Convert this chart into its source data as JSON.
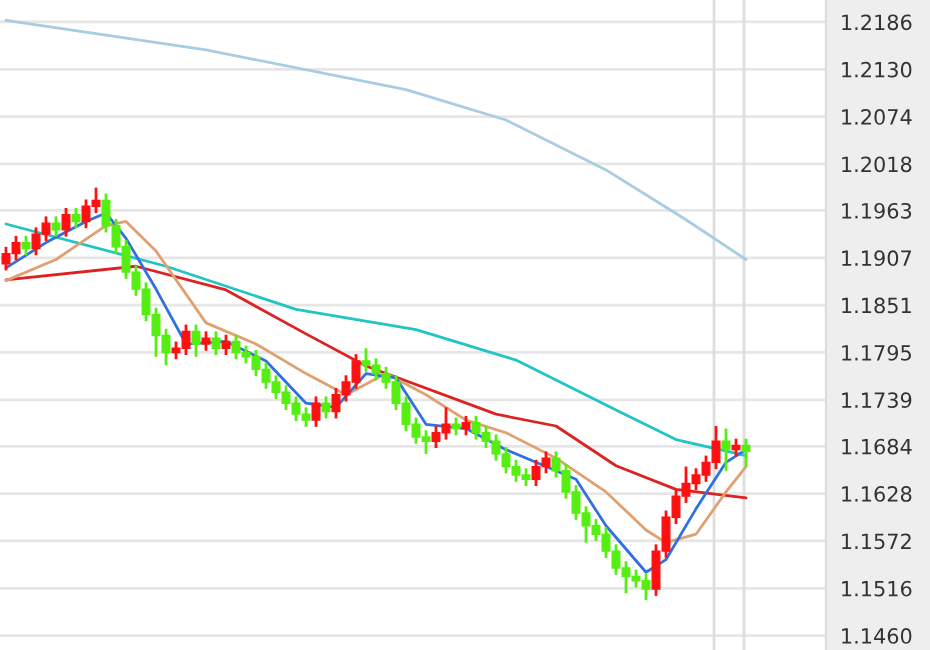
{
  "chart_data": {
    "type": "candlestick",
    "categories": [
      null,
      null,
      null,
      null,
      null,
      null,
      null,
      null,
      null,
      null,
      null,
      null,
      null,
      null,
      null,
      null,
      null,
      null,
      null,
      null,
      null,
      null,
      null,
      null,
      null,
      null,
      null,
      null,
      null,
      null,
      null,
      null,
      null,
      null,
      null,
      null,
      null,
      null,
      null,
      null,
      null,
      null,
      null,
      null,
      null,
      null,
      null,
      null,
      null,
      null,
      null,
      null,
      null,
      null,
      null,
      null,
      null,
      null,
      null,
      null,
      null,
      null,
      null,
      null,
      null,
      null,
      null,
      null,
      null,
      null,
      null,
      null,
      null,
      null,
      null
    ],
    "series": [
      {
        "type": "candlestick",
        "colors": [
          "#ff1010",
          "#ff1010",
          "#55ee11",
          "#ff1010",
          "#ff1010",
          "#55ee11",
          "#ff1010",
          "#55ee11",
          "#ff1010",
          "#ff1010",
          "#55ee11",
          "#55ee11",
          "#55ee11",
          "#55ee11",
          "#55ee11",
          "#55ee11",
          "#55ee11",
          "#ff1010",
          "#ff1010",
          "#55ee11",
          "#ff1010",
          "#55ee11",
          "#ff1010",
          "#55ee11",
          "#55ee11",
          "#55ee11",
          "#55ee11",
          "#55ee11",
          "#55ee11",
          "#55ee11",
          "#55ee11",
          "#ff1010",
          "#55ee11",
          "#ff1010",
          "#ff1010",
          "#ff1010",
          "#55ee11",
          "#55ee11",
          "#55ee11",
          "#55ee11",
          "#55ee11",
          "#55ee11",
          "#55ee11",
          "#ff1010",
          "#ff1010",
          "#55ee11",
          "#ff1010",
          "#55ee11",
          "#55ee11",
          "#55ee11",
          "#55ee11",
          "#55ee11",
          "#55ee11",
          "#ff1010",
          "#ff1010",
          "#55ee11",
          "#55ee11",
          "#55ee11",
          "#55ee11",
          "#55ee11",
          "#55ee11",
          "#55ee11",
          "#55ee11",
          "#55ee11",
          "#55ee11",
          "#ff1010",
          "#ff1010",
          "#ff1010",
          "#ff1010",
          "#ff1010",
          "#ff1010",
          "#ff1010",
          "#55ee11",
          "#ff1010",
          "#55ee11"
        ],
        "ohlc": [
          [
            1.19,
            1.192,
            1.1892,
            1.1912
          ],
          [
            1.1912,
            1.1933,
            1.1904,
            1.1925
          ],
          [
            1.1925,
            1.1933,
            1.191,
            1.1918
          ],
          [
            1.1918,
            1.1943,
            1.191,
            1.1935
          ],
          [
            1.1935,
            1.1956,
            1.1927,
            1.1948
          ],
          [
            1.1948,
            1.1956,
            1.1932,
            1.194
          ],
          [
            1.194,
            1.1966,
            1.1932,
            1.1958
          ],
          [
            1.1958,
            1.1966,
            1.1942,
            1.195
          ],
          [
            1.195,
            1.1976,
            1.1942,
            1.1968
          ],
          [
            1.1968,
            1.199,
            1.196,
            1.1975
          ],
          [
            1.1975,
            1.1983,
            1.1937,
            1.1945
          ],
          [
            1.1945,
            1.1953,
            1.1912,
            1.192
          ],
          [
            1.192,
            1.1928,
            1.1882,
            1.189
          ],
          [
            1.189,
            1.1898,
            1.1862,
            1.187
          ],
          [
            1.187,
            1.1878,
            1.1832,
            1.184
          ],
          [
            1.184,
            1.1848,
            1.179,
            1.1815
          ],
          [
            1.1815,
            1.1823,
            1.178,
            1.1795
          ],
          [
            1.1795,
            1.1808,
            1.1787,
            1.18
          ],
          [
            1.18,
            1.1828,
            1.1792,
            1.182
          ],
          [
            1.182,
            1.1828,
            1.179,
            1.1805
          ],
          [
            1.1805,
            1.182,
            1.1797,
            1.1812
          ],
          [
            1.1812,
            1.182,
            1.1792,
            1.18
          ],
          [
            1.18,
            1.1816,
            1.1792,
            1.1808
          ],
          [
            1.1808,
            1.1816,
            1.1787,
            1.1795
          ],
          [
            1.1795,
            1.1803,
            1.1782,
            1.179
          ],
          [
            1.179,
            1.1798,
            1.1767,
            1.1775
          ],
          [
            1.1775,
            1.1783,
            1.1752,
            1.176
          ],
          [
            1.176,
            1.1768,
            1.174,
            1.1748
          ],
          [
            1.1748,
            1.1756,
            1.1727,
            1.1735
          ],
          [
            1.1735,
            1.1743,
            1.1714,
            1.1722
          ],
          [
            1.1722,
            1.173,
            1.1707,
            1.1715
          ],
          [
            1.1715,
            1.1743,
            1.1707,
            1.1735
          ],
          [
            1.1735,
            1.1743,
            1.1717,
            1.1725
          ],
          [
            1.1725,
            1.1753,
            1.1717,
            1.1745
          ],
          [
            1.1745,
            1.1768,
            1.1737,
            1.176
          ],
          [
            1.176,
            1.1793,
            1.1752,
            1.1785
          ],
          [
            1.1785,
            1.18,
            1.1772,
            1.178
          ],
          [
            1.178,
            1.1788,
            1.1762,
            1.177
          ],
          [
            1.177,
            1.1778,
            1.1752,
            1.176
          ],
          [
            1.176,
            1.1768,
            1.1727,
            1.1735
          ],
          [
            1.1735,
            1.1743,
            1.1702,
            1.171
          ],
          [
            1.171,
            1.1718,
            1.1687,
            1.1695
          ],
          [
            1.1695,
            1.1703,
            1.1675,
            1.169
          ],
          [
            1.169,
            1.1708,
            1.1682,
            1.17
          ],
          [
            1.17,
            1.173,
            1.1692,
            1.171
          ],
          [
            1.171,
            1.1718,
            1.1697,
            1.1705
          ],
          [
            1.1705,
            1.172,
            1.1697,
            1.1712
          ],
          [
            1.1712,
            1.172,
            1.1692,
            1.17
          ],
          [
            1.17,
            1.1708,
            1.1682,
            1.169
          ],
          [
            1.169,
            1.1698,
            1.1667,
            1.1675
          ],
          [
            1.1675,
            1.1683,
            1.1652,
            1.166
          ],
          [
            1.166,
            1.1668,
            1.1642,
            1.165
          ],
          [
            1.165,
            1.1658,
            1.1637,
            1.1645
          ],
          [
            1.1645,
            1.1668,
            1.1637,
            1.166
          ],
          [
            1.166,
            1.1678,
            1.1652,
            1.167
          ],
          [
            1.167,
            1.1678,
            1.1647,
            1.1655
          ],
          [
            1.1655,
            1.1663,
            1.1622,
            1.163
          ],
          [
            1.163,
            1.1638,
            1.1597,
            1.1605
          ],
          [
            1.1605,
            1.1613,
            1.157,
            1.159
          ],
          [
            1.159,
            1.1598,
            1.1572,
            1.158
          ],
          [
            1.158,
            1.1588,
            1.1552,
            1.156
          ],
          [
            1.156,
            1.1568,
            1.1532,
            1.154
          ],
          [
            1.154,
            1.1548,
            1.151,
            1.153
          ],
          [
            1.153,
            1.1538,
            1.1517,
            1.1525
          ],
          [
            1.1525,
            1.1533,
            1.1502,
            1.1515
          ],
          [
            1.1515,
            1.1568,
            1.1507,
            1.156
          ],
          [
            1.156,
            1.1608,
            1.1552,
            1.16
          ],
          [
            1.16,
            1.1633,
            1.1592,
            1.1625
          ],
          [
            1.1625,
            1.166,
            1.1617,
            1.164
          ],
          [
            1.164,
            1.1658,
            1.1632,
            1.165
          ],
          [
            1.165,
            1.1673,
            1.1642,
            1.1665
          ],
          [
            1.1665,
            1.1708,
            1.1657,
            1.169
          ],
          [
            1.169,
            1.1705,
            1.1655,
            1.168
          ],
          [
            1.168,
            1.1693,
            1.1672,
            1.1685
          ],
          [
            1.1685,
            1.1693,
            1.166,
            1.1678
          ]
        ]
      },
      {
        "type": "line",
        "color": "#a9cce3",
        "values": [
          1.2188,
          null,
          null,
          null,
          null,
          null,
          null,
          null,
          null,
          null,
          null,
          null,
          null,
          null,
          null,
          null,
          null,
          null,
          null,
          null,
          1.2153,
          null,
          null,
          null,
          null,
          null,
          null,
          null,
          null,
          null,
          null,
          null,
          null,
          null,
          null,
          null,
          null,
          null,
          null,
          null,
          1.2106,
          null,
          null,
          null,
          null,
          null,
          null,
          null,
          null,
          null,
          1.207,
          null,
          null,
          null,
          null,
          null,
          null,
          null,
          null,
          null,
          1.2011,
          null,
          null,
          null,
          null,
          null,
          null,
          null,
          1.1952,
          null,
          null,
          null,
          null,
          null,
          1.1905
        ]
      },
      {
        "type": "line",
        "color": "#22c4c4",
        "values": [
          1.1947,
          null,
          null,
          null,
          null,
          null,
          null,
          null,
          null,
          null,
          null,
          null,
          null,
          null,
          null,
          null,
          1.1897,
          null,
          null,
          null,
          null,
          null,
          null,
          null,
          null,
          null,
          null,
          null,
          null,
          1.1846,
          null,
          null,
          null,
          null,
          null,
          null,
          null,
          null,
          null,
          null,
          null,
          1.1822,
          null,
          null,
          null,
          null,
          null,
          null,
          null,
          null,
          null,
          1.1786,
          null,
          null,
          null,
          null,
          null,
          null,
          null,
          null,
          null,
          1.1727,
          null,
          null,
          null,
          null,
          null,
          1.1692,
          null,
          null,
          null,
          null,
          null,
          null,
          1.1673
        ]
      },
      {
        "type": "line",
        "color": "#dd2222",
        "values": [
          1.1881,
          null,
          null,
          null,
          null,
          null,
          null,
          null,
          null,
          null,
          null,
          null,
          null,
          1.1897,
          null,
          null,
          null,
          null,
          null,
          null,
          null,
          null,
          1.1869,
          null,
          null,
          null,
          null,
          null,
          null,
          null,
          1.1817,
          null,
          null,
          null,
          null,
          null,
          1.1779,
          null,
          null,
          null,
          null,
          null,
          null,
          null,
          null,
          null,
          null,
          null,
          null,
          1.1722,
          null,
          null,
          null,
          null,
          null,
          1.1708,
          null,
          null,
          null,
          null,
          null,
          1.1661,
          null,
          null,
          null,
          null,
          null,
          1.1633,
          null,
          null,
          null,
          null,
          null,
          null,
          1.1623
        ]
      },
      {
        "type": "line",
        "color": "#e0a070",
        "values": [
          1.188,
          null,
          null,
          null,
          null,
          1.1905,
          null,
          null,
          null,
          null,
          1.1945,
          null,
          1.195,
          null,
          null,
          1.1915,
          null,
          null,
          null,
          null,
          1.183,
          null,
          null,
          null,
          null,
          1.1805,
          null,
          null,
          null,
          null,
          1.177,
          null,
          null,
          null,
          1.1745,
          null,
          null,
          null,
          1.177,
          null,
          null,
          null,
          1.1745,
          null,
          null,
          null,
          1.1715,
          null,
          null,
          null,
          1.17,
          null,
          null,
          null,
          null,
          1.167,
          null,
          null,
          null,
          null,
          1.163,
          null,
          null,
          null,
          1.1585,
          null,
          1.157,
          null,
          null,
          1.158,
          null,
          null,
          1.163,
          null,
          1.166
        ]
      },
      {
        "type": "line",
        "color": "#3070e0",
        "values": [
          1.1895,
          null,
          null,
          null,
          1.1925,
          null,
          null,
          null,
          1.195,
          null,
          1.196,
          null,
          1.193,
          null,
          null,
          1.187,
          null,
          null,
          1.1805,
          null,
          null,
          null,
          1.1808,
          null,
          null,
          null,
          1.1785,
          null,
          null,
          null,
          1.1735,
          null,
          null,
          1.173,
          null,
          null,
          1.177,
          null,
          null,
          1.1765,
          null,
          null,
          1.171,
          null,
          null,
          null,
          1.1705,
          null,
          null,
          null,
          1.168,
          null,
          null,
          null,
          1.166,
          null,
          null,
          1.1645,
          null,
          null,
          1.159,
          null,
          null,
          null,
          1.1535,
          null,
          1.155,
          null,
          null,
          1.161,
          null,
          null,
          1.1665,
          null,
          1.168
        ]
      }
    ],
    "ylim": [
      1.1443,
      1.2212
    ],
    "yticks": [
      1.2186,
      {
        "value": 1.213,
        "label": "1.2130"
      },
      1.2074,
      1.2018,
      1.1963,
      1.1907,
      1.1851,
      1.1795,
      1.1739,
      1.1684,
      1.1628,
      1.1572,
      1.1516,
      {
        "value": 1.146,
        "label": "1.1460"
      }
    ],
    "grid": "y",
    "tick_labels": "y"
  }
}
